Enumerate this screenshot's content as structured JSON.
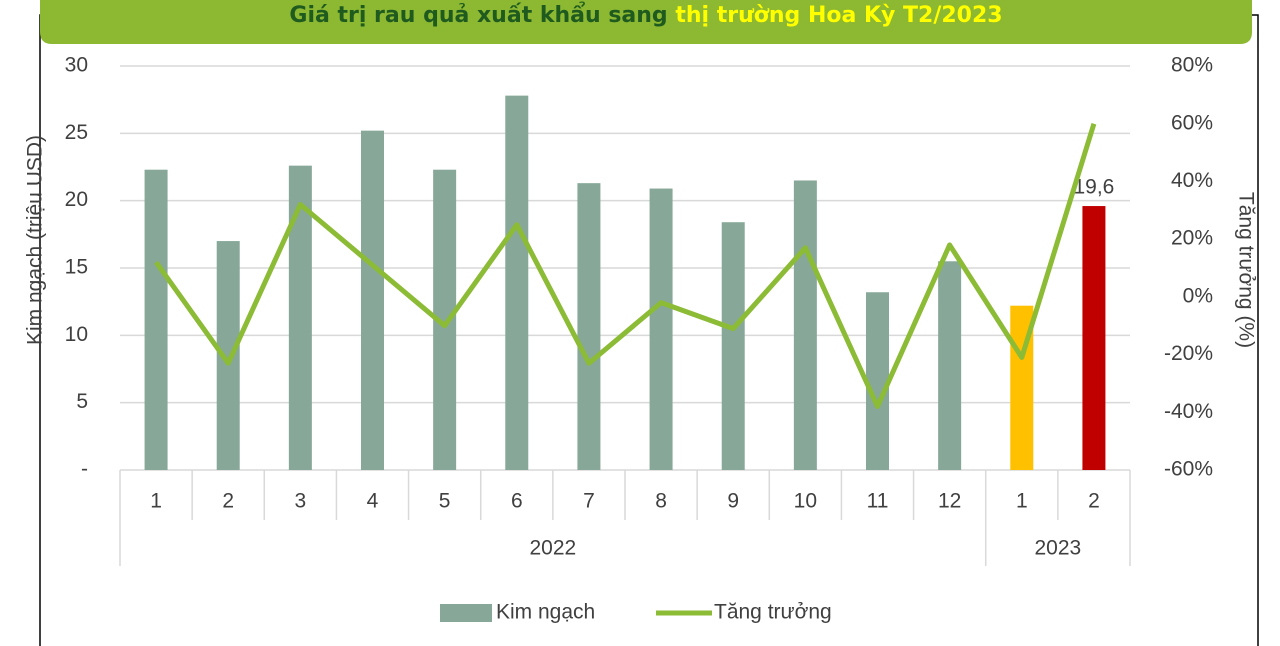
{
  "chart_data": {
    "type": "bar-line",
    "title": [
      "Giá trị  rau quả xuất khẩu sang",
      "thị trường Hoa Kỳ T2/2023"
    ],
    "categories": [
      "1",
      "2",
      "3",
      "4",
      "5",
      "6",
      "7",
      "8",
      "9",
      "10",
      "11",
      "12",
      "1",
      "2"
    ],
    "groups": [
      "2022",
      "2022",
      "2022",
      "2022",
      "2022",
      "2022",
      "2022",
      "2022",
      "2022",
      "2022",
      "2022",
      "2022",
      "2023",
      "2023"
    ],
    "ylabel": "Kim ngạch (triệu USD)",
    "y2label": "Tăng trưởng (%)",
    "series": [
      {
        "name": "Kim ngạch",
        "type": "bar",
        "color": "#87a899",
        "colors": [
          "#87a899",
          "#87a899",
          "#87a899",
          "#87a899",
          "#87a899",
          "#87a899",
          "#87a899",
          "#87a899",
          "#87a899",
          "#87a899",
          "#87a899",
          "#87a899",
          "#ffc000",
          "#c00000"
        ],
        "values": [
          22.3,
          17.0,
          22.6,
          25.2,
          22.3,
          27.8,
          21.3,
          20.9,
          18.4,
          21.5,
          13.2,
          15.5,
          12.2,
          19.6
        ],
        "value_labels": [
          null,
          null,
          null,
          null,
          null,
          null,
          null,
          null,
          null,
          null,
          null,
          null,
          null,
          "19,6"
        ]
      },
      {
        "name": "Tăng trưởng",
        "type": "line",
        "axis": "y2",
        "color": "#8cbb36",
        "values": [
          12,
          -23,
          32,
          11,
          -10,
          25,
          -23,
          -2,
          -11,
          17,
          -38,
          18,
          -21,
          60
        ]
      }
    ],
    "ylim": [
      0,
      30
    ],
    "yticks": [
      {
        "value": 0,
        "label": "-"
      },
      5,
      10,
      15,
      20,
      25,
      30
    ],
    "y2lim": [
      -60,
      80
    ],
    "y2ticks": [
      {
        "value": -60,
        "label": "-60%"
      },
      {
        "value": -40,
        "label": "-40%"
      },
      {
        "value": -20,
        "label": "-20%"
      },
      {
        "value": 0,
        "label": "0%"
      },
      {
        "value": 20,
        "label": "20%"
      },
      {
        "value": 40,
        "label": "40%"
      },
      {
        "value": 60,
        "label": "60%"
      },
      {
        "value": 80,
        "label": "80%"
      }
    ],
    "grid": true,
    "legend": "bottom"
  }
}
